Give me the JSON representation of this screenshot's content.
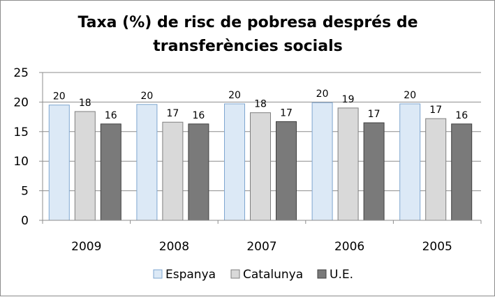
{
  "chart_data": {
    "type": "bar",
    "title_lines": [
      "Taxa (%) de risc de pobresa després de",
      "transferències socials"
    ],
    "xlabel": "",
    "ylabel": "",
    "categories": [
      "2009",
      "2008",
      "2007",
      "2006",
      "2005"
    ],
    "series": [
      {
        "name": "Espanya",
        "values": [
          19.5,
          19.6,
          19.7,
          19.9,
          19.7
        ],
        "labels": [
          "20",
          "20",
          "20",
          "20",
          "20"
        ],
        "color": "#dce9f6",
        "stroke": "#7ea6d0"
      },
      {
        "name": "Catalunya",
        "values": [
          18.4,
          16.6,
          18.2,
          19.0,
          17.2
        ],
        "labels": [
          "18",
          "17",
          "18",
          "19",
          "17"
        ],
        "color": "#d9d9d9",
        "stroke": "#7f7f7f"
      },
      {
        "name": "U.E.",
        "values": [
          16.3,
          16.3,
          16.7,
          16.5,
          16.3
        ],
        "labels": [
          "16",
          "16",
          "17",
          "17",
          "16"
        ],
        "color": "#7a7a7a",
        "stroke": "#404040"
      }
    ],
    "yticks": [
      "0",
      "5",
      "10",
      "15",
      "20",
      "25"
    ],
    "ylim": [
      0,
      25
    ],
    "grid": true,
    "legend_position": "bottom"
  }
}
